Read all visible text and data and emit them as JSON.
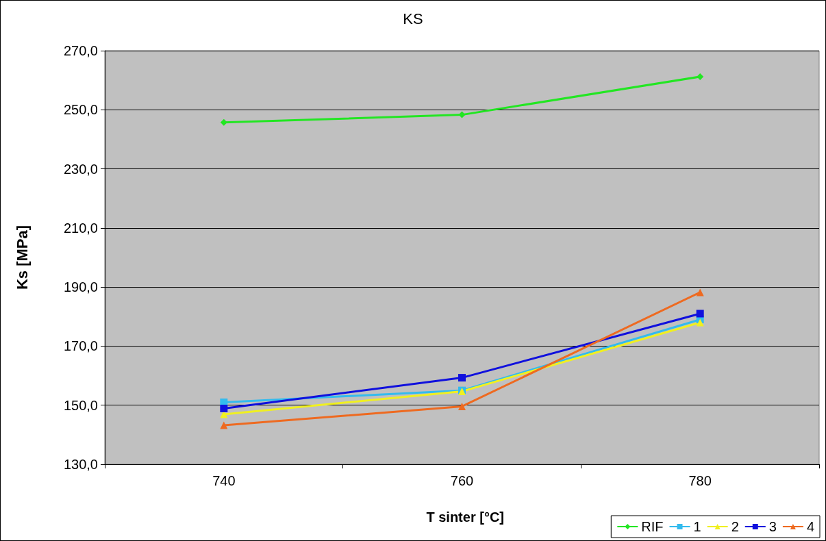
{
  "chart_data": {
    "type": "line",
    "title": "KS",
    "xlabel": "T sinter [°C]",
    "ylabel": "Ks [MPa]",
    "categories": [
      "740",
      "760",
      "780"
    ],
    "series": [
      {
        "name": "RIF",
        "color": "#22e622",
        "marker": "diamond",
        "values": [
          245.7,
          248.3,
          261.2
        ]
      },
      {
        "name": "1",
        "color": "#33bbee",
        "marker": "square",
        "values": [
          151,
          155,
          179
        ]
      },
      {
        "name": "2",
        "color": "#f0f020",
        "marker": "triangle",
        "values": [
          146.9,
          154.7,
          178.0
        ]
      },
      {
        "name": "3",
        "color": "#1010dd",
        "marker": "square",
        "values": [
          148.9,
          159.3,
          181.0
        ]
      },
      {
        "name": "4",
        "color": "#ee6a20",
        "marker": "triangle",
        "values": [
          143.2,
          149.6,
          188.2
        ]
      }
    ],
    "ylim": [
      130,
      270
    ],
    "yticks": [
      {
        "value": 130,
        "label": "130,0"
      },
      {
        "value": 150,
        "label": "150,0"
      },
      {
        "value": 170,
        "label": "170,0"
      },
      {
        "value": 190,
        "label": "190,0"
      },
      {
        "value": 210,
        "label": "210,0"
      },
      {
        "value": 230,
        "label": "230,0"
      },
      {
        "value": 250,
        "label": "250,0"
      },
      {
        "value": 270,
        "label": "270,0"
      }
    ],
    "grid": "y",
    "legend": "bottom right",
    "line_style": "solid"
  }
}
